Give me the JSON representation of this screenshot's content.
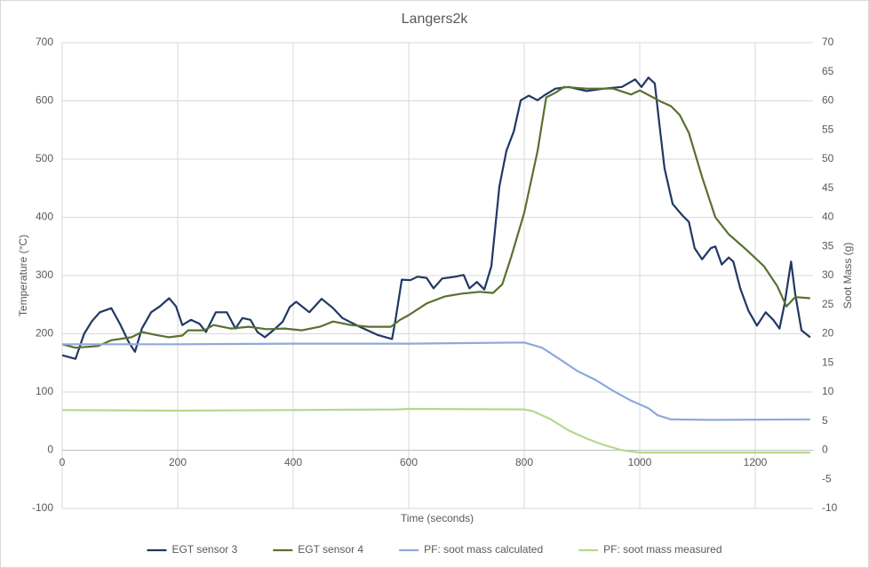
{
  "chart_data": {
    "type": "line",
    "title": "Langers2k",
    "x_label": "Time (seconds)",
    "y_label": "Temperature (°C)",
    "y2_label": "Soot Mass (g)",
    "xlim": [
      0,
      1300
    ],
    "xticks": [
      0,
      200,
      400,
      600,
      800,
      1000,
      1200
    ],
    "ylim": [
      -100,
      700
    ],
    "yticks": [
      -100,
      0,
      100,
      200,
      300,
      400,
      500,
      600,
      700
    ],
    "y2lim": [
      -10,
      70
    ],
    "y2ticks": [
      -10,
      -5,
      0,
      5,
      10,
      15,
      20,
      25,
      30,
      35,
      40,
      45,
      50,
      55,
      60,
      65,
      70
    ],
    "grid": true,
    "legend": "bottom",
    "series": [
      {
        "name": "EGT sensor 3",
        "color": "#203864",
        "x": [
          0,
          23,
          38,
          51,
          65,
          85,
          100,
          115,
          126,
          138,
          154,
          169,
          185,
          197,
          208,
          223,
          238,
          249,
          266,
          285,
          300,
          312,
          326,
          338,
          351,
          369,
          382,
          394,
          405,
          428,
          449,
          469,
          485,
          515,
          546,
          571,
          577,
          588,
          603,
          615,
          631,
          643,
          658,
          680,
          695,
          705,
          718,
          731,
          743,
          757,
          769,
          782,
          794,
          808,
          823,
          834,
          854,
          877,
          908,
          938,
          969,
          992,
          1003,
          1015,
          1026,
          1034,
          1043,
          1057,
          1074,
          1085,
          1095,
          1108,
          1123,
          1131,
          1142,
          1154,
          1162,
          1174,
          1188,
          1203,
          1218,
          1231,
          1242,
          1251,
          1262,
          1269,
          1280,
          1295
        ],
        "values": [
          163,
          157,
          200,
          221,
          237,
          244,
          217,
          186,
          169,
          209,
          237,
          247,
          261,
          247,
          215,
          224,
          217,
          203,
          237,
          237,
          209,
          227,
          224,
          203,
          194,
          209,
          221,
          246,
          255,
          237,
          260,
          244,
          227,
          212,
          198,
          191,
          224,
          293,
          292,
          298,
          296,
          278,
          295,
          298,
          301,
          278,
          289,
          276,
          316,
          453,
          514,
          548,
          601,
          609,
          601,
          609,
          621,
          624,
          617,
          621,
          624,
          637,
          624,
          640,
          630,
          560,
          484,
          423,
          403,
          392,
          347,
          328,
          347,
          350,
          319,
          331,
          324,
          278,
          240,
          214,
          237,
          224,
          209,
          252,
          324,
          269,
          206,
          194
        ]
      },
      {
        "name": "EGT sensor 4",
        "color": "#5a7030",
        "x": [
          0,
          23,
          62,
          85,
          120,
          138,
          162,
          185,
          208,
          218,
          246,
          262,
          292,
          323,
          354,
          385,
          415,
          446,
          469,
          500,
          531,
          569,
          585,
          600,
          631,
          662,
          692,
          723,
          746,
          762,
          777,
          800,
          823,
          838,
          854,
          869,
          908,
          954,
          985,
          1000,
          1023,
          1038,
          1054,
          1069,
          1085,
          1108,
          1131,
          1154,
          1185,
          1215,
          1238,
          1254,
          1269,
          1295
        ],
        "values": [
          182,
          176,
          179,
          189,
          194,
          203,
          198,
          194,
          197,
          206,
          206,
          215,
          209,
          212,
          208,
          209,
          206,
          212,
          221,
          215,
          212,
          212,
          224,
          232,
          252,
          264,
          269,
          272,
          270,
          285,
          331,
          408,
          514,
          606,
          614,
          624,
          621,
          621,
          611,
          618,
          606,
          598,
          591,
          576,
          545,
          469,
          400,
          371,
          344,
          316,
          282,
          247,
          263,
          261
        ]
      },
      {
        "name": "PF: soot mass calculated",
        "color": "#8eaadb",
        "axis": "y2",
        "x": [
          0,
          200,
          400,
          600,
          800,
          831,
          862,
          892,
          923,
          954,
          985,
          1015,
          1031,
          1054,
          1123,
          1295
        ],
        "values": [
          18.2,
          18.2,
          18.3,
          18.3,
          18.5,
          17.6,
          15.6,
          13.6,
          12.1,
          10.2,
          8.5,
          7.2,
          6.0,
          5.3,
          5.2,
          5.3
        ]
      },
      {
        "name": "PF: soot mass measured",
        "color": "#b4d88f",
        "axis": "y2",
        "x": [
          0,
          200,
          400,
          580,
          600,
          800,
          815,
          846,
          877,
          908,
          938,
          969,
          1000,
          1100,
          1295
        ],
        "values": [
          6.9,
          6.8,
          6.9,
          7.0,
          7.1,
          7.0,
          6.7,
          5.3,
          3.4,
          2.0,
          0.9,
          0.0,
          -0.4,
          -0.4,
          -0.4
        ]
      }
    ]
  }
}
